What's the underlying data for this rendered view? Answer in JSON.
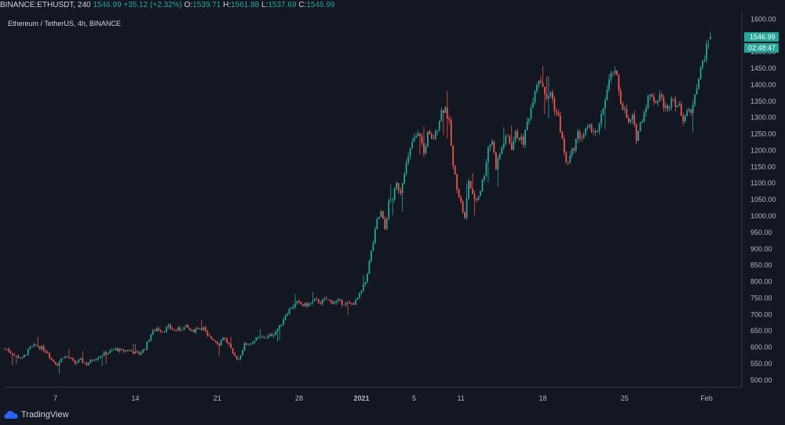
{
  "header": {
    "symbol": "BINANCE:ETHUSDT, 240",
    "last": "1546.99",
    "change": "+35.12 (+2.32%)",
    "o_label": "O:",
    "o_value": "1539.71",
    "h_label": "H:",
    "h_value": "1561.88",
    "l_label": "L:",
    "l_value": "1537.69",
    "c_label": "C:",
    "c_value": "1546.99"
  },
  "chart_title": "Ethereum / TetherUS, 4h, BINANCE",
  "price_tag": "1546.99",
  "countdown_tag": "02:48:47",
  "brand": "TradingView",
  "colors": {
    "up": "#26a69a",
    "down": "#ef5350",
    "background": "#131722",
    "text": "#b2b5be"
  },
  "chart_data": {
    "type": "candlestick",
    "title": "Ethereum / TetherUS, 4h, BINANCE",
    "y_ticks": [
      500,
      550,
      600,
      650,
      700,
      750,
      800,
      850,
      900,
      950,
      1000,
      1050,
      1100,
      1150,
      1200,
      1250,
      1300,
      1350,
      1400,
      1450,
      1500,
      1550,
      1600
    ],
    "ylim": [
      478,
      1625
    ],
    "x_ticks": [
      "7",
      "14",
      "21",
      "28",
      "2021",
      "5",
      "11",
      "18",
      "25",
      "Feb"
    ],
    "x_tick_index": [
      26,
      67,
      109,
      151,
      183,
      210,
      234,
      276,
      318,
      360
    ],
    "grid": false,
    "series": [
      {
        "name": "",
        "points": [
          [
            1,
            595
          ],
          [
            5,
            575
          ],
          [
            9,
            565
          ],
          [
            13,
            598
          ],
          [
            16,
            606
          ],
          [
            19,
            598
          ],
          [
            22,
            585
          ],
          [
            24,
            562
          ],
          [
            27,
            548
          ],
          [
            30,
            572
          ],
          [
            33,
            568
          ],
          [
            36,
            552
          ],
          [
            39,
            560
          ],
          [
            42,
            548
          ],
          [
            45,
            562
          ],
          [
            48,
            572
          ],
          [
            51,
            580
          ],
          [
            54,
            586
          ],
          [
            57,
            595
          ],
          [
            60,
            588
          ],
          [
            63,
            592
          ],
          [
            66,
            585
          ],
          [
            69,
            580
          ],
          [
            72,
            598
          ],
          [
            75,
            640
          ],
          [
            78,
            658
          ],
          [
            81,
            650
          ],
          [
            84,
            662
          ],
          [
            87,
            652
          ],
          [
            90,
            655
          ],
          [
            93,
            662
          ],
          [
            96,
            648
          ],
          [
            99,
            660
          ],
          [
            102,
            658
          ],
          [
            104,
            632
          ],
          [
            107,
            625
          ],
          [
            110,
            610
          ],
          [
            112,
            632
          ],
          [
            115,
            608
          ],
          [
            117,
            575
          ],
          [
            120,
            565
          ],
          [
            123,
            608
          ],
          [
            126,
            612
          ],
          [
            129,
            625
          ],
          [
            132,
            630
          ],
          [
            135,
            632
          ],
          [
            138,
            642
          ],
          [
            141,
            662
          ],
          [
            144,
            700
          ],
          [
            147,
            722
          ],
          [
            150,
            735
          ],
          [
            153,
            728
          ],
          [
            156,
            730
          ],
          [
            159,
            742
          ],
          [
            162,
            738
          ],
          [
            165,
            745
          ],
          [
            168,
            738
          ],
          [
            171,
            740
          ],
          [
            174,
            735
          ],
          [
            177,
            730
          ],
          [
            180,
            738
          ],
          [
            183,
            770
          ],
          [
            185,
            800
          ],
          [
            187,
            860
          ],
          [
            189,
            920
          ],
          [
            191,
            985
          ],
          [
            193,
            1010
          ],
          [
            195,
            960
          ],
          [
            197,
            1040
          ],
          [
            199,
            1055
          ],
          [
            201,
            1095
          ],
          [
            203,
            1075
          ],
          [
            205,
            1140
          ],
          [
            207,
            1175
          ],
          [
            209,
            1225
          ],
          [
            211,
            1240
          ],
          [
            213,
            1250
          ],
          [
            215,
            1190
          ],
          [
            217,
            1250
          ],
          [
            219,
            1230
          ],
          [
            221,
            1250
          ],
          [
            224,
            1320
          ],
          [
            226,
            1330
          ],
          [
            228,
            1280
          ],
          [
            230,
            1150
          ],
          [
            232,
            1090
          ],
          [
            234,
            1040
          ],
          [
            236,
            990
          ],
          [
            238,
            1110
          ],
          [
            240,
            1060
          ],
          [
            242,
            1050
          ],
          [
            244,
            1080
          ],
          [
            246,
            1130
          ],
          [
            248,
            1210
          ],
          [
            250,
            1230
          ],
          [
            252,
            1150
          ],
          [
            254,
            1190
          ],
          [
            256,
            1225
          ],
          [
            258,
            1240
          ],
          [
            260,
            1210
          ],
          [
            262,
            1250
          ],
          [
            264,
            1240
          ],
          [
            266,
            1225
          ],
          [
            268,
            1285
          ],
          [
            270,
            1330
          ],
          [
            272,
            1390
          ],
          [
            274,
            1420
          ],
          [
            276,
            1400
          ],
          [
            278,
            1350
          ],
          [
            280,
            1380
          ],
          [
            282,
            1330
          ],
          [
            284,
            1300
          ],
          [
            286,
            1230
          ],
          [
            288,
            1160
          ],
          [
            290,
            1180
          ],
          [
            292,
            1210
          ],
          [
            294,
            1250
          ],
          [
            296,
            1240
          ],
          [
            298,
            1260
          ],
          [
            301,
            1270
          ],
          [
            304,
            1250
          ],
          [
            306,
            1300
          ],
          [
            308,
            1360
          ],
          [
            310,
            1410
          ],
          [
            312,
            1440
          ],
          [
            314,
            1420
          ],
          [
            316,
            1350
          ],
          [
            318,
            1320
          ],
          [
            320,
            1280
          ],
          [
            322,
            1300
          ],
          [
            324,
            1240
          ],
          [
            326,
            1280
          ],
          [
            328,
            1320
          ],
          [
            330,
            1360
          ],
          [
            332,
            1370
          ],
          [
            334,
            1345
          ],
          [
            336,
            1370
          ],
          [
            338,
            1340
          ],
          [
            340,
            1320
          ],
          [
            342,
            1370
          ],
          [
            344,
            1345
          ],
          [
            346,
            1330
          ],
          [
            348,
            1300
          ],
          [
            350,
            1320
          ],
          [
            352,
            1310
          ],
          [
            354,
            1380
          ],
          [
            356,
            1420
          ],
          [
            358,
            1470
          ],
          [
            360,
            1510
          ],
          [
            362,
            1546.99
          ]
        ]
      }
    ]
  }
}
